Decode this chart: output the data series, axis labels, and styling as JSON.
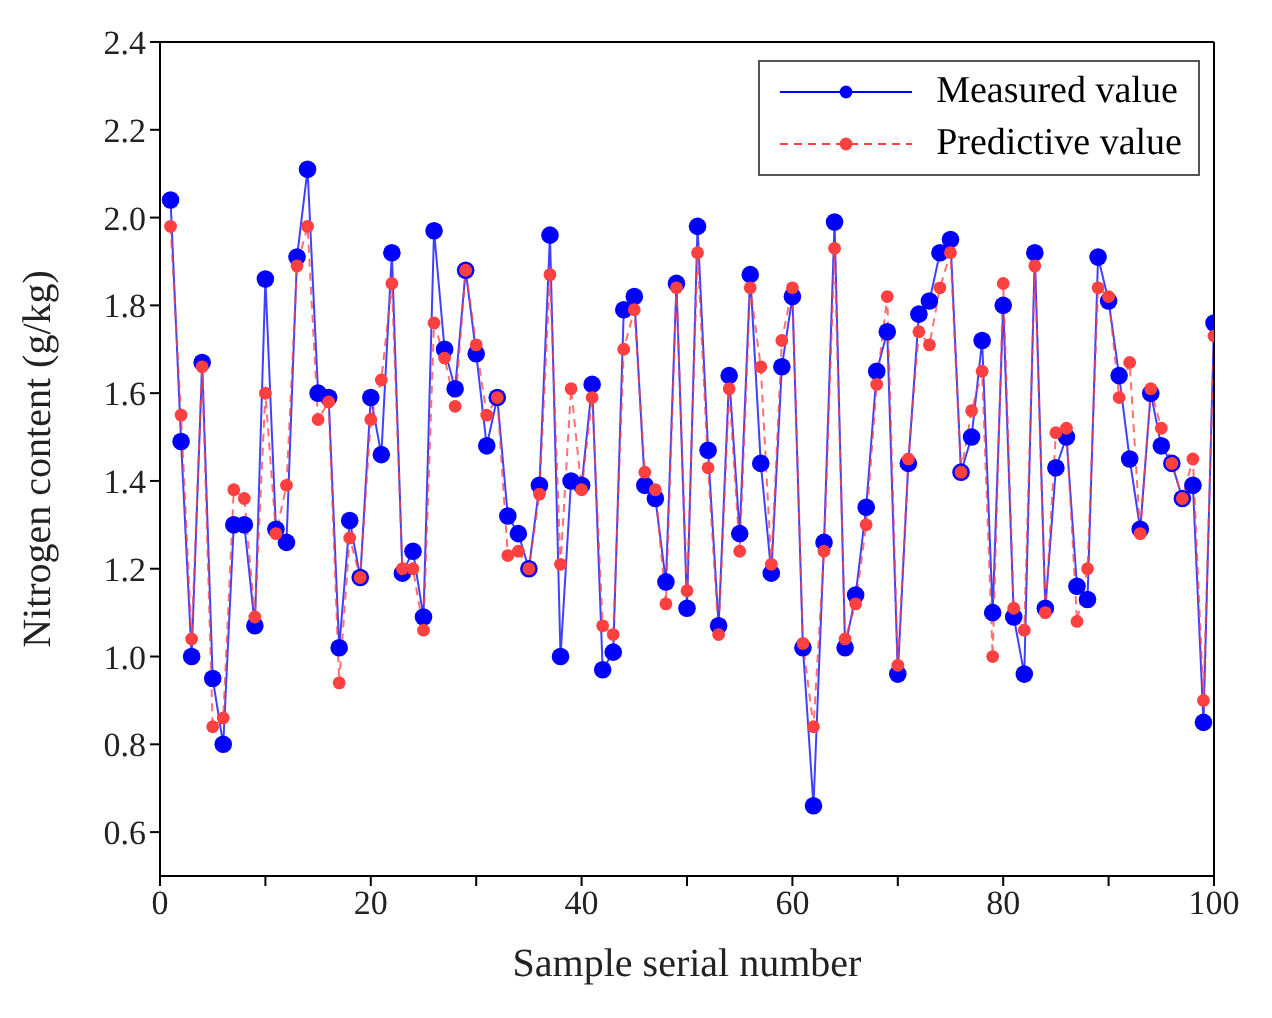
{
  "chart_data": {
    "type": "line",
    "xlabel": "Sample serial number",
    "ylabel": "Nitrogen content (g/kg)",
    "x": [
      1,
      2,
      3,
      4,
      5,
      6,
      7,
      8,
      9,
      10,
      11,
      12,
      13,
      14,
      15,
      16,
      17,
      18,
      19,
      20,
      21,
      22,
      23,
      24,
      25,
      26,
      27,
      28,
      29,
      30,
      31,
      32,
      33,
      34,
      35,
      36,
      37,
      38,
      39,
      40,
      41,
      42,
      43,
      44,
      45,
      46,
      47,
      48,
      49,
      50,
      51,
      52,
      53,
      54,
      55,
      56,
      57,
      58,
      59,
      60,
      61,
      62,
      63,
      64,
      65,
      66,
      67,
      68,
      69,
      70,
      71,
      72,
      73,
      74,
      75,
      76,
      77,
      78,
      79,
      80,
      81,
      82,
      83,
      84,
      85,
      86,
      87,
      88,
      89,
      90,
      91,
      92,
      93,
      94,
      95,
      96,
      97,
      98,
      99,
      100
    ],
    "series": [
      {
        "name": "Measured value",
        "color": "#0000ff",
        "line_style": "solid",
        "values": [
          2.04,
          1.49,
          1.0,
          1.67,
          0.95,
          0.8,
          1.3,
          1.3,
          1.07,
          1.86,
          1.29,
          1.26,
          1.91,
          2.11,
          1.6,
          1.59,
          1.02,
          1.31,
          1.18,
          1.59,
          1.46,
          1.92,
          1.19,
          1.24,
          1.09,
          1.97,
          1.7,
          1.61,
          1.88,
          1.69,
          1.48,
          1.59,
          1.32,
          1.28,
          1.2,
          1.39,
          1.96,
          1.0,
          1.4,
          1.39,
          1.62,
          0.97,
          1.01,
          1.79,
          1.82,
          1.39,
          1.36,
          1.17,
          1.85,
          1.11,
          1.98,
          1.47,
          1.07,
          1.64,
          1.28,
          1.87,
          1.44,
          1.19,
          1.66,
          1.82,
          1.02,
          0.66,
          1.26,
          1.99,
          1.02,
          1.14,
          1.34,
          1.65,
          1.74,
          0.96,
          1.44,
          1.78,
          1.81,
          1.92,
          1.95,
          1.42,
          1.5,
          1.72,
          1.1,
          1.8,
          1.09,
          0.96,
          1.92,
          1.11,
          1.43,
          1.5,
          1.16,
          1.13,
          1.91,
          1.81,
          1.64,
          1.45,
          1.29,
          1.6,
          1.48,
          1.44,
          1.36,
          1.39,
          0.85,
          1.76
        ]
      },
      {
        "name": "Predictive value",
        "color": "#ff4040",
        "line_style": "dashed",
        "values": [
          1.98,
          1.55,
          1.04,
          1.66,
          0.84,
          0.86,
          1.38,
          1.36,
          1.09,
          1.6,
          1.28,
          1.39,
          1.89,
          1.98,
          1.54,
          1.58,
          0.94,
          1.27,
          1.18,
          1.54,
          1.63,
          1.85,
          1.2,
          1.2,
          1.06,
          1.76,
          1.68,
          1.57,
          1.88,
          1.71,
          1.55,
          1.59,
          1.23,
          1.24,
          1.2,
          1.37,
          1.87,
          1.21,
          1.61,
          1.38,
          1.59,
          1.07,
          1.05,
          1.7,
          1.79,
          1.42,
          1.38,
          1.12,
          1.84,
          1.15,
          1.92,
          1.43,
          1.05,
          1.61,
          1.24,
          1.84,
          1.66,
          1.21,
          1.72,
          1.84,
          1.03,
          0.84,
          1.24,
          1.93,
          1.04,
          1.12,
          1.3,
          1.62,
          1.82,
          0.98,
          1.45,
          1.74,
          1.71,
          1.84,
          1.92,
          1.42,
          1.56,
          1.65,
          1.0,
          1.85,
          1.11,
          1.06,
          1.89,
          1.1,
          1.51,
          1.52,
          1.08,
          1.2,
          1.84,
          1.82,
          1.59,
          1.67,
          1.28,
          1.61,
          1.52,
          1.44,
          1.36,
          1.45,
          0.9,
          1.73
        ]
      }
    ],
    "xlim": [
      0,
      100
    ],
    "xticks": [
      0,
      {
        "value": 10,
        "label": null
      },
      20,
      {
        "value": 30,
        "label": null
      },
      40,
      {
        "value": 50,
        "label": null
      },
      60,
      {
        "value": 70,
        "label": null
      },
      80,
      {
        "value": 90,
        "label": null
      },
      100
    ],
    "ylim": [
      0.5,
      2.4
    ],
    "yticks": [
      0.6,
      0.8,
      {
        "value": 1,
        "label": "1.0"
      },
      1.2,
      1.4,
      1.6,
      1.8,
      {
        "value": 2,
        "label": "2.0"
      },
      2.2,
      2.4
    ],
    "marker": "circle",
    "legend": "top right",
    "grid": false
  }
}
